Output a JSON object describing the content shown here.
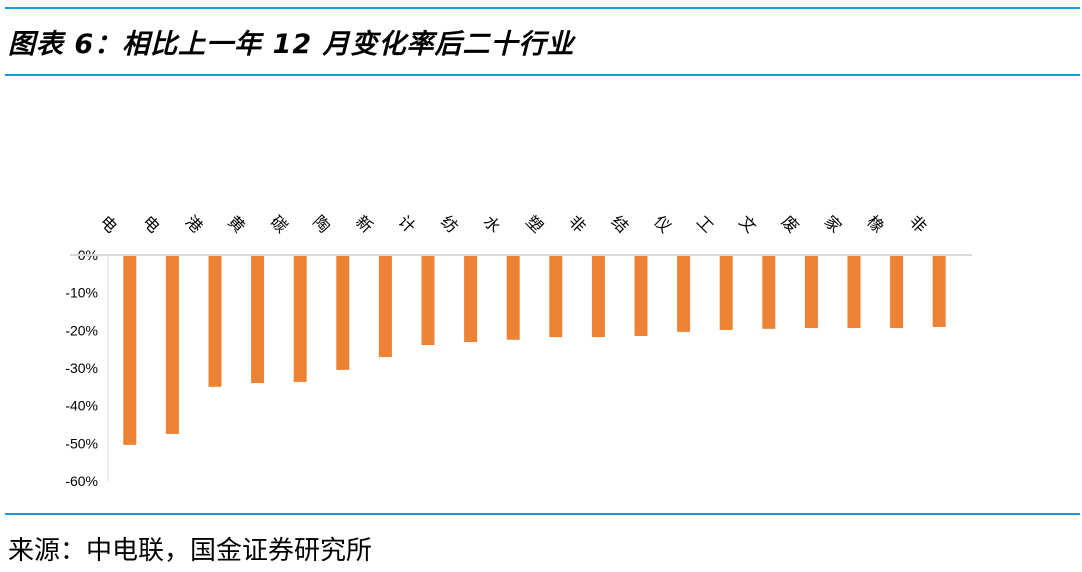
{
  "title": "图表 6：相比上一年 12 月变化率后二十行业",
  "source": "来源：中电联，国金证券研究所",
  "colors": {
    "accent_rule": "#1a9bd7",
    "bar": "#ed8235",
    "axis": "#d9d9d9"
  },
  "chart_data": {
    "type": "bar",
    "categories": [
      "电",
      "电",
      "港",
      "黄",
      "碳",
      "陶",
      "新",
      "计",
      "纺",
      "水",
      "塑",
      "非",
      "结",
      "仪",
      "工",
      "文",
      "废",
      "家",
      "橡",
      "非"
    ],
    "values": [
      -50.4,
      -47.5,
      -35.0,
      -34.0,
      -33.7,
      -30.5,
      -27.1,
      -23.9,
      -23.1,
      -22.5,
      -21.8,
      -21.8,
      -21.5,
      -20.4,
      -19.9,
      -19.6,
      -19.4,
      -19.4,
      -19.4,
      -19.1
    ],
    "yticks": [
      "0%",
      "-10%",
      "-20%",
      "-30%",
      "-40%",
      "-50%",
      "-60%"
    ],
    "ylim": [
      -60,
      0
    ],
    "grid": false,
    "category_labels_rotated": true
  }
}
